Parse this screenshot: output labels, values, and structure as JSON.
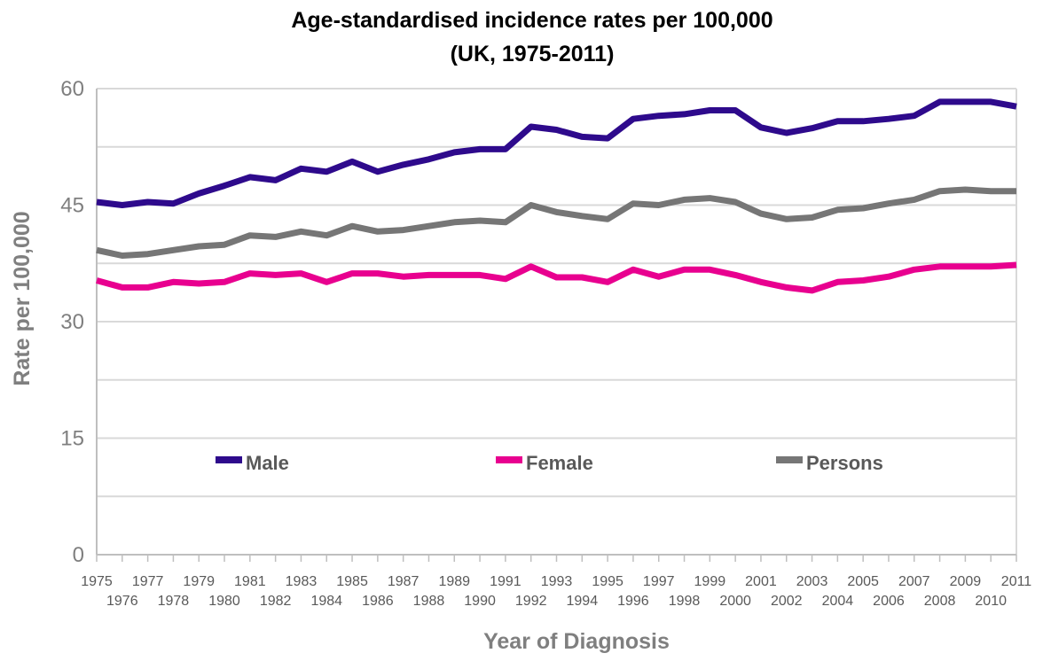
{
  "chart_data": {
    "type": "line",
    "title": "Age-standardised incidence rates per 100,000",
    "subtitle": "(UK, 1975-2011)",
    "xlabel": "Year of Diagnosis",
    "ylabel": "Rate per 100,000",
    "ylim": [
      0,
      60
    ],
    "yticks": [
      0,
      15,
      30,
      45,
      60
    ],
    "grid": true,
    "legend_position": "inside-center",
    "x": [
      1975,
      1976,
      1977,
      1978,
      1979,
      1980,
      1981,
      1982,
      1983,
      1984,
      1985,
      1986,
      1987,
      1988,
      1989,
      1990,
      1991,
      1992,
      1993,
      1994,
      1995,
      1996,
      1997,
      1998,
      1999,
      2000,
      2001,
      2002,
      2003,
      2004,
      2005,
      2006,
      2007,
      2008,
      2009,
      2010,
      2011
    ],
    "series": [
      {
        "name": "Male",
        "color": "#2e0a8c",
        "values": [
          45.4,
          45.0,
          45.4,
          45.2,
          46.5,
          47.5,
          48.6,
          48.2,
          49.7,
          49.3,
          50.6,
          49.3,
          50.2,
          50.9,
          51.8,
          52.2,
          52.2,
          55.1,
          54.7,
          53.8,
          53.6,
          56.1,
          56.5,
          56.7,
          57.2,
          57.2,
          55.0,
          54.3,
          54.9,
          55.8,
          55.8,
          56.1,
          56.5,
          58.3,
          58.3,
          58.3,
          57.7
        ]
      },
      {
        "name": "Female",
        "color": "#e8008f",
        "values": [
          35.3,
          34.4,
          34.4,
          35.1,
          34.9,
          35.1,
          36.2,
          36.0,
          36.2,
          35.1,
          36.2,
          36.2,
          35.8,
          36.0,
          36.0,
          36.0,
          35.5,
          37.1,
          35.7,
          35.7,
          35.1,
          36.7,
          35.8,
          36.7,
          36.7,
          36.0,
          35.1,
          34.4,
          34.0,
          35.1,
          35.3,
          35.8,
          36.7,
          37.1,
          37.1,
          37.1,
          37.3
        ]
      },
      {
        "name": "Persons",
        "color": "#767676",
        "values": [
          39.2,
          38.5,
          38.7,
          39.2,
          39.7,
          39.9,
          41.1,
          40.9,
          41.6,
          41.1,
          42.3,
          41.6,
          41.8,
          42.3,
          42.8,
          43.0,
          42.8,
          45.0,
          44.1,
          43.6,
          43.2,
          45.2,
          45.0,
          45.7,
          45.9,
          45.4,
          43.9,
          43.2,
          43.4,
          44.4,
          44.6,
          45.2,
          45.7,
          46.8,
          47.0,
          46.8,
          46.8
        ]
      }
    ]
  }
}
